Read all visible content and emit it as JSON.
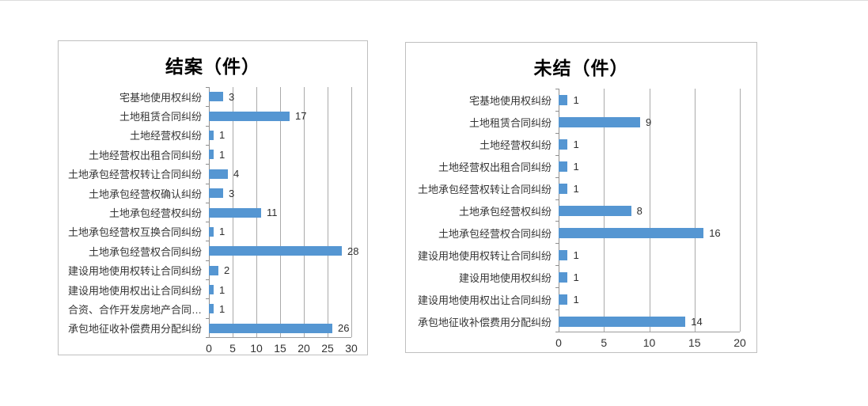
{
  "page": {
    "background": "#ffffff"
  },
  "chart_data": [
    {
      "type": "bar",
      "orientation": "horizontal",
      "title": "结案（件）",
      "bar_color": "#5596D2",
      "grid": true,
      "legend": false,
      "categories": [
        "宅基地使用权纠纷",
        "土地租赁合同纠纷",
        "土地经营权纠纷",
        "土地经营权出租合同纠纷",
        "土地承包经营权转让合同纠纷",
        "土地承包经营权确认纠纷",
        "土地承包经营权纠纷",
        "土地承包经营权互换合同纠纷",
        "土地承包经营权合同纠纷",
        "建设用地使用权转让合同纠纷",
        "建设用地使用权出让合同纠纷",
        "合资、合作开发房地产合同…",
        "承包地征收补偿费用分配纠纷"
      ],
      "values": [
        3,
        17,
        1,
        1,
        4,
        3,
        11,
        1,
        28,
        2,
        1,
        1,
        26
      ],
      "xlim": [
        0,
        30
      ],
      "xticks": [
        0,
        5,
        10,
        15,
        20,
        25,
        30
      ]
    },
    {
      "type": "bar",
      "orientation": "horizontal",
      "title": "未结（件）",
      "bar_color": "#5596D2",
      "grid": true,
      "legend": false,
      "categories": [
        "宅基地使用权纠纷",
        "土地租赁合同纠纷",
        "土地经营权纠纷",
        "土地经营权出租合同纠纷",
        "土地承包经营权转让合同纠纷",
        "土地承包经营权纠纷",
        "土地承包经营权合同纠纷",
        "建设用地使用权转让合同纠纷",
        "建设用地使用权纠纷",
        "建设用地使用权出让合同纠纷",
        "承包地征收补偿费用分配纠纷"
      ],
      "values": [
        1,
        9,
        1,
        1,
        1,
        8,
        16,
        1,
        1,
        1,
        14
      ],
      "xlim": [
        0,
        20
      ],
      "xticks": [
        0,
        5,
        10,
        15,
        20
      ]
    }
  ]
}
